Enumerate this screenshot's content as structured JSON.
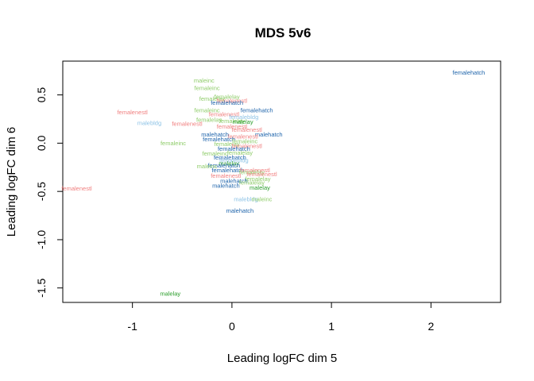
{
  "chart_data": {
    "type": "scatter",
    "title": "MDS 5v6",
    "xlabel": "Leading logFC dim 5",
    "ylabel": "Leading logFC dim 6",
    "xlim": [
      -1.7,
      2.7
    ],
    "ylim": [
      -1.65,
      0.85
    ],
    "x_ticks": [
      -1,
      0,
      1,
      2
    ],
    "y_ticks": [
      0.5,
      0.0,
      -0.5,
      -1.0,
      -1.5
    ],
    "x_tick_labels": [
      "-1",
      "0",
      "1",
      "2"
    ],
    "y_tick_labels": [
      "0.5",
      "0.0",
      "-0.5",
      "-1.0",
      "-1.5"
    ],
    "grid": false,
    "legend": "none",
    "colors": {
      "femalenestl": "#f08080",
      "femaleinc": "#8fcc6a",
      "femalelay": "#8fcc6a",
      "femalehatch": "#2166ac",
      "malelay": "#2a9d2a",
      "maleinc": "#8fcc6a",
      "malehatch": "#2166ac",
      "malebldg": "#8ec3e6",
      "femalebldg": "#8ec3e6"
    },
    "points": [
      {
        "label": "femalehatch",
        "x": 2.38,
        "y": 0.73
      },
      {
        "label": "malelay",
        "x": -0.62,
        "y": -1.56
      },
      {
        "label": "femalenestl",
        "x": -1.56,
        "y": -0.47
      },
      {
        "label": "femalenestl",
        "x": -1.0,
        "y": 0.32
      },
      {
        "label": "malebldg",
        "x": -0.83,
        "y": 0.21
      },
      {
        "label": "femaleinc",
        "x": -0.59,
        "y": 0.0
      },
      {
        "label": "maleinc",
        "x": -0.28,
        "y": 0.65
      },
      {
        "label": "femaleinc",
        "x": -0.25,
        "y": 0.57
      },
      {
        "label": "femalelay",
        "x": -0.2,
        "y": 0.46
      },
      {
        "label": "femalelay",
        "x": -0.05,
        "y": 0.48
      },
      {
        "label": "femalenestl",
        "x": 0.0,
        "y": 0.44
      },
      {
        "label": "femalehatch",
        "x": -0.05,
        "y": 0.42
      },
      {
        "label": "femalehatch",
        "x": 0.25,
        "y": 0.34
      },
      {
        "label": "femaleinc",
        "x": -0.25,
        "y": 0.34
      },
      {
        "label": "femalenestl",
        "x": -0.08,
        "y": 0.3
      },
      {
        "label": "femalebldg",
        "x": 0.12,
        "y": 0.27
      },
      {
        "label": "femalelay",
        "x": -0.23,
        "y": 0.24
      },
      {
        "label": "femalelay",
        "x": 0.0,
        "y": 0.23
      },
      {
        "label": "malelay",
        "x": 0.11,
        "y": 0.22
      },
      {
        "label": "femalenestl",
        "x": -0.45,
        "y": 0.2
      },
      {
        "label": "femalenestl",
        "x": 0.0,
        "y": 0.17
      },
      {
        "label": "femalenestl",
        "x": 0.15,
        "y": 0.14
      },
      {
        "label": "malehatch",
        "x": 0.37,
        "y": 0.09
      },
      {
        "label": "femalenestl",
        "x": 0.11,
        "y": 0.07
      },
      {
        "label": "malehatch",
        "x": -0.17,
        "y": 0.09
      },
      {
        "label": "femalehatch",
        "x": -0.13,
        "y": 0.04
      },
      {
        "label": "femaleinc",
        "x": 0.13,
        "y": 0.02
      },
      {
        "label": "femalelay",
        "x": -0.05,
        "y": -0.01
      },
      {
        "label": "femalenestl",
        "x": 0.15,
        "y": -0.03
      },
      {
        "label": "femalehatch",
        "x": 0.02,
        "y": -0.06
      },
      {
        "label": "femalelay",
        "x": 0.08,
        "y": -0.1
      },
      {
        "label": "femaleinc",
        "x": -0.17,
        "y": -0.11
      },
      {
        "label": "femalehatch",
        "x": -0.02,
        "y": -0.15
      },
      {
        "label": "femalebldg",
        "x": 0.02,
        "y": -0.18
      },
      {
        "label": "malelay",
        "x": -0.03,
        "y": -0.21
      },
      {
        "label": "femalehatch",
        "x": -0.08,
        "y": -0.23
      },
      {
        "label": "maleinc",
        "x": -0.25,
        "y": -0.24
      },
      {
        "label": "femalehatch",
        "x": -0.04,
        "y": -0.28
      },
      {
        "label": "femalenestl",
        "x": 0.23,
        "y": -0.28
      },
      {
        "label": "femalelay",
        "x": 0.2,
        "y": -0.3
      },
      {
        "label": "femalenestl",
        "x": 0.3,
        "y": -0.32
      },
      {
        "label": "femalenestl",
        "x": -0.06,
        "y": -0.34
      },
      {
        "label": "femalelay",
        "x": 0.26,
        "y": -0.37
      },
      {
        "label": "malehatch",
        "x": 0.02,
        "y": -0.39
      },
      {
        "label": "femalelay",
        "x": 0.2,
        "y": -0.41
      },
      {
        "label": "malehatch",
        "x": -0.06,
        "y": -0.44
      },
      {
        "label": "malelay",
        "x": 0.28,
        "y": -0.46
      },
      {
        "label": "malebldg",
        "x": 0.14,
        "y": -0.58
      },
      {
        "label": "maleinc",
        "x": 0.3,
        "y": -0.58
      },
      {
        "label": "malehatch",
        "x": 0.08,
        "y": -0.7
      }
    ]
  }
}
